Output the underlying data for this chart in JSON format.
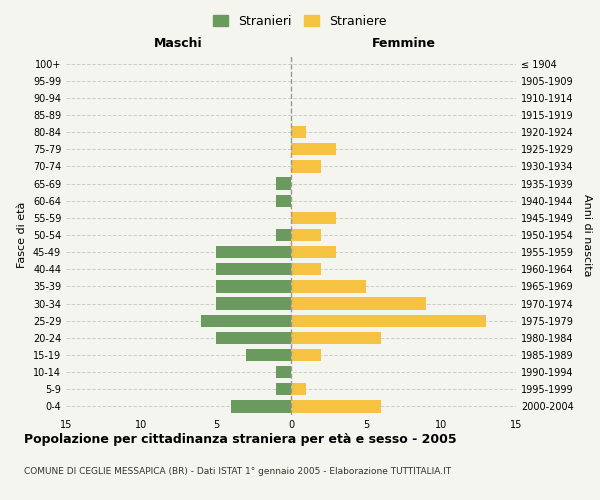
{
  "age_groups": [
    "100+",
    "95-99",
    "90-94",
    "85-89",
    "80-84",
    "75-79",
    "70-74",
    "65-69",
    "60-64",
    "55-59",
    "50-54",
    "45-49",
    "40-44",
    "35-39",
    "30-34",
    "25-29",
    "20-24",
    "15-19",
    "10-14",
    "5-9",
    "0-4"
  ],
  "birth_years": [
    "≤ 1904",
    "1905-1909",
    "1910-1914",
    "1915-1919",
    "1920-1924",
    "1925-1929",
    "1930-1934",
    "1935-1939",
    "1940-1944",
    "1945-1949",
    "1950-1954",
    "1955-1959",
    "1960-1964",
    "1965-1969",
    "1970-1974",
    "1975-1979",
    "1980-1984",
    "1985-1989",
    "1990-1994",
    "1995-1999",
    "2000-2004"
  ],
  "males": [
    0,
    0,
    0,
    0,
    0,
    0,
    0,
    1,
    1,
    0,
    1,
    5,
    5,
    5,
    5,
    6,
    5,
    3,
    1,
    1,
    4
  ],
  "females": [
    0,
    0,
    0,
    0,
    1,
    3,
    2,
    0,
    0,
    3,
    2,
    3,
    2,
    5,
    9,
    13,
    6,
    2,
    0,
    1,
    6
  ],
  "male_color": "#6a9a5e",
  "female_color": "#f5c242",
  "background_color": "#f5f5f0",
  "grid_color": "#cccccc",
  "title": "Popolazione per cittadinanza straniera per età e sesso - 2005",
  "subtitle": "COMUNE DI CEGLIE MESSAPICA (BR) - Dati ISTAT 1° gennaio 2005 - Elaborazione TUTTITALIA.IT",
  "xlabel_left": "Maschi",
  "xlabel_right": "Femmine",
  "ylabel_left": "Fasce di età",
  "ylabel_right": "Anni di nascita",
  "legend_male": "Stranieri",
  "legend_female": "Straniere",
  "xlim": 15
}
